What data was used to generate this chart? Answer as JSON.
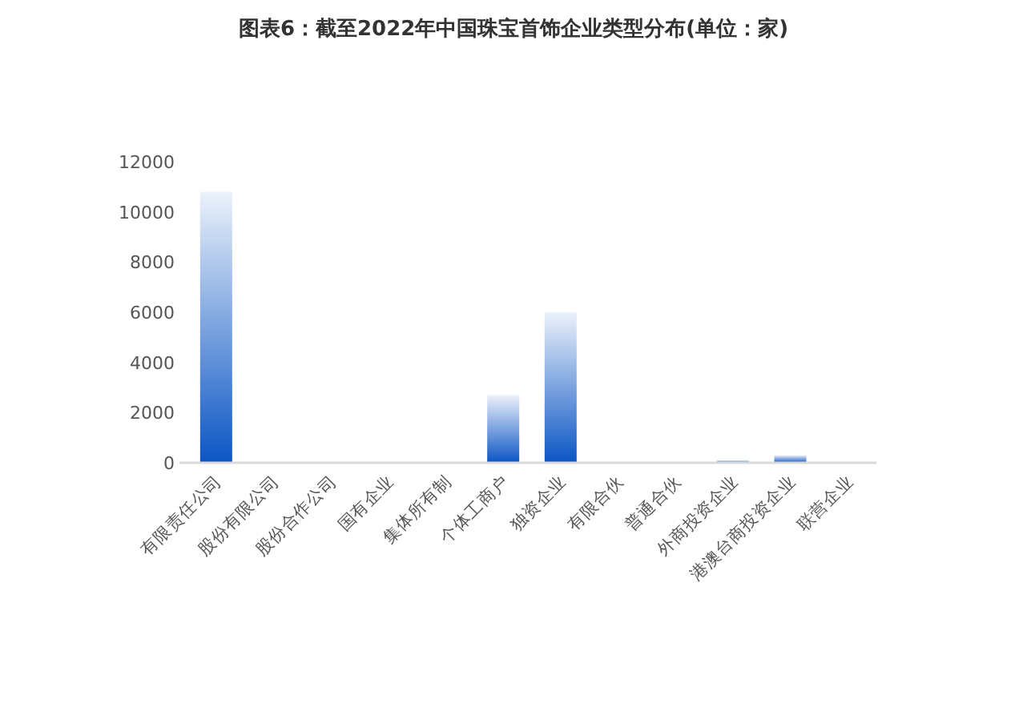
{
  "chart_data": {
    "type": "bar",
    "title": "图表6：截至2022年中国珠宝首饰企业类型分布(单位：家)",
    "categories": [
      "有限责任公司",
      "股份有限公司",
      "股份合作公司",
      "国有企业",
      "集体所有制",
      "个体工商户",
      "独资企业",
      "有限合伙",
      "普通合伙",
      "外商投资企业",
      "港澳台商投资企业",
      "联营企业"
    ],
    "values": [
      10800,
      0,
      0,
      0,
      0,
      2700,
      6000,
      0,
      0,
      100,
      300,
      0
    ],
    "color": "#0b55c4",
    "ylim": [
      0,
      12000
    ],
    "yticks": [
      0,
      2000,
      4000,
      6000,
      8000,
      10000,
      12000
    ]
  }
}
